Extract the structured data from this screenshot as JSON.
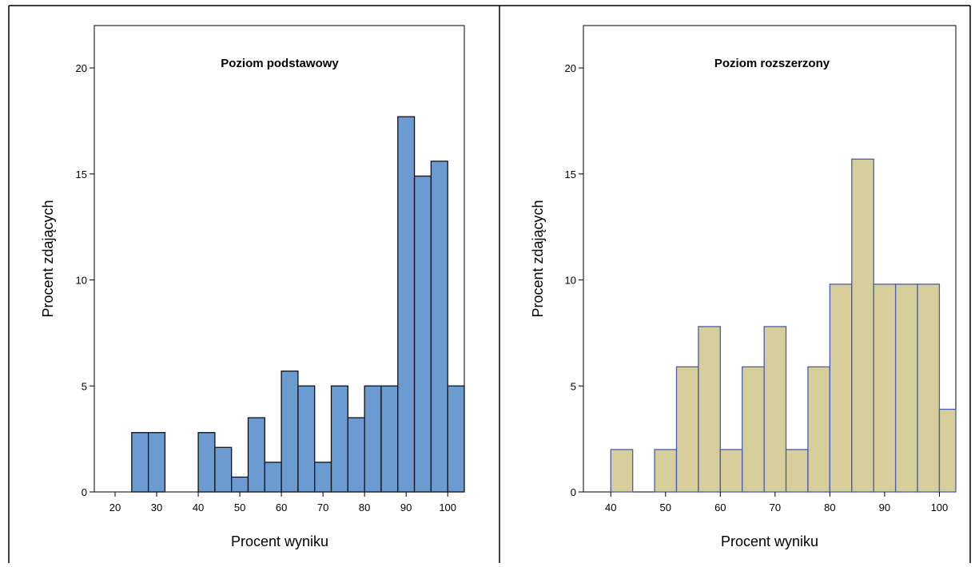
{
  "chart_data": [
    {
      "type": "bar",
      "title": "Poziom podstawowy",
      "xlabel": "Procent wyniku",
      "ylabel": "Procent zdających",
      "xlim": [
        15,
        104
      ],
      "ylim": [
        0,
        22
      ],
      "bin_width": 4,
      "x_ticks": [
        "20",
        "30",
        "40",
        "50",
        "60",
        "70",
        "80",
        "90",
        "100"
      ],
      "y_ticks": [
        "0",
        "5",
        "10",
        "15",
        "20"
      ],
      "bar_color": "#6b9bd0",
      "bar_edge": "#111111",
      "bins": [
        {
          "start": 24,
          "end": 28,
          "value": 2.8
        },
        {
          "start": 28,
          "end": 32,
          "value": 2.8
        },
        {
          "start": 40,
          "end": 44,
          "value": 2.8
        },
        {
          "start": 44,
          "end": 48,
          "value": 2.1
        },
        {
          "start": 48,
          "end": 52,
          "value": 0.7
        },
        {
          "start": 52,
          "end": 56,
          "value": 3.5
        },
        {
          "start": 56,
          "end": 60,
          "value": 1.4
        },
        {
          "start": 60,
          "end": 64,
          "value": 5.7
        },
        {
          "start": 64,
          "end": 68,
          "value": 5.0
        },
        {
          "start": 68,
          "end": 72,
          "value": 1.4
        },
        {
          "start": 72,
          "end": 76,
          "value": 5.0
        },
        {
          "start": 76,
          "end": 80,
          "value": 3.5
        },
        {
          "start": 80,
          "end": 84,
          "value": 5.0
        },
        {
          "start": 84,
          "end": 88,
          "value": 5.0
        },
        {
          "start": 88,
          "end": 92,
          "value": 17.7
        },
        {
          "start": 92,
          "end": 96,
          "value": 14.9
        },
        {
          "start": 96,
          "end": 100,
          "value": 15.6
        },
        {
          "start": 100,
          "end": 104,
          "value": 5.0
        }
      ]
    },
    {
      "type": "bar",
      "title": "Poziom rozszerzony",
      "xlabel": "Procent wyniku",
      "ylabel": "Procent zdających",
      "xlim": [
        35,
        103
      ],
      "ylim": [
        0,
        22
      ],
      "bin_width": 4,
      "x_ticks": [
        "40",
        "50",
        "60",
        "70",
        "80",
        "90",
        "100"
      ],
      "y_ticks": [
        "0",
        "5",
        "10",
        "15",
        "20"
      ],
      "bar_color": "#d6cf9c",
      "bar_edge": "#4a5bb0",
      "bins": [
        {
          "start": 40,
          "end": 44,
          "value": 2.0
        },
        {
          "start": 48,
          "end": 52,
          "value": 2.0
        },
        {
          "start": 52,
          "end": 56,
          "value": 5.9
        },
        {
          "start": 56,
          "end": 60,
          "value": 7.8
        },
        {
          "start": 60,
          "end": 64,
          "value": 2.0
        },
        {
          "start": 64,
          "end": 68,
          "value": 5.9
        },
        {
          "start": 68,
          "end": 72,
          "value": 7.8
        },
        {
          "start": 72,
          "end": 76,
          "value": 2.0
        },
        {
          "start": 76,
          "end": 80,
          "value": 5.9
        },
        {
          "start": 80,
          "end": 84,
          "value": 9.8
        },
        {
          "start": 84,
          "end": 88,
          "value": 15.7
        },
        {
          "start": 88,
          "end": 92,
          "value": 9.8
        },
        {
          "start": 92,
          "end": 96,
          "value": 9.8
        },
        {
          "start": 96,
          "end": 100,
          "value": 9.8
        },
        {
          "start": 100,
          "end": 104,
          "value": 3.9
        }
      ]
    }
  ]
}
